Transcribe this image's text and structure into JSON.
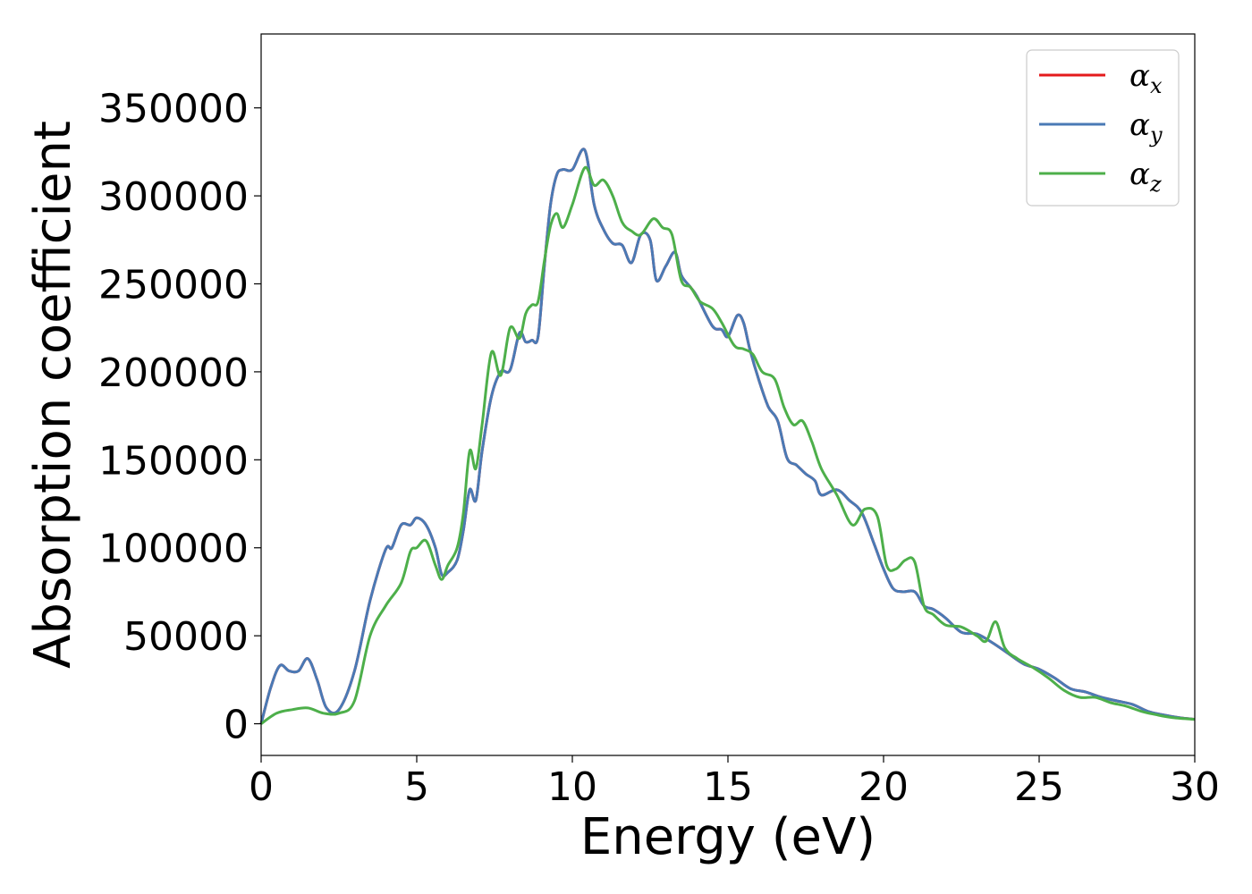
{
  "chart_data": {
    "type": "line",
    "title": "",
    "xlabel": "Energy (eV)",
    "ylabel": "Absorption coefficient",
    "xlim": [
      0,
      30
    ],
    "ylim": [
      -18000,
      392000
    ],
    "xticks": [
      0,
      5,
      10,
      15,
      20,
      25,
      30
    ],
    "yticks": [
      0,
      50000,
      100000,
      150000,
      200000,
      250000,
      300000,
      350000
    ],
    "grid": false,
    "legend_position": "top-right",
    "series": [
      {
        "name": "α",
        "sub": "x",
        "color": "#e41a1c",
        "x": [
          0,
          0.3,
          0.6,
          0.9,
          1.2,
          1.5,
          1.8,
          2.1,
          2.5,
          3.0,
          3.5,
          4.0,
          4.2,
          4.5,
          4.8,
          5.0,
          5.3,
          5.6,
          5.8,
          6.0,
          6.3,
          6.5,
          6.7,
          6.9,
          7.1,
          7.4,
          7.7,
          8.0,
          8.3,
          8.5,
          8.7,
          8.9,
          9.1,
          9.3,
          9.5,
          9.7,
          10.0,
          10.4,
          10.7,
          11.0,
          11.3,
          11.6,
          11.9,
          12.2,
          12.5,
          12.7,
          13.0,
          13.3,
          13.5,
          13.8,
          14.0,
          14.5,
          14.8,
          15.0,
          15.3,
          15.5,
          15.7,
          16.0,
          16.3,
          16.6,
          16.9,
          17.2,
          17.5,
          17.8,
          18.0,
          18.5,
          18.9,
          19.3,
          19.7,
          20.0,
          20.3,
          20.6,
          21.0,
          21.3,
          21.6,
          22.0,
          22.5,
          23.0,
          23.5,
          24.0,
          24.5,
          25.0,
          25.5,
          26.0,
          26.5,
          27.0,
          27.5,
          28.0,
          28.5,
          29.0,
          29.5,
          30.0
        ],
        "y": [
          0,
          20000,
          33000,
          30000,
          30000,
          37000,
          25000,
          9000,
          8000,
          30000,
          70000,
          99000,
          100000,
          113000,
          113000,
          117000,
          113000,
          100000,
          85000,
          86000,
          93000,
          110000,
          133000,
          127000,
          155000,
          186000,
          200000,
          201000,
          222000,
          217000,
          218000,
          220000,
          260000,
          295000,
          312000,
          315000,
          315000,
          326000,
          295000,
          281000,
          273000,
          272000,
          262000,
          278000,
          275000,
          252000,
          260000,
          268000,
          255000,
          248000,
          243000,
          226000,
          224000,
          220000,
          232000,
          228000,
          213000,
          195000,
          180000,
          172000,
          151000,
          147000,
          142000,
          138000,
          130000,
          133000,
          127000,
          120000,
          102000,
          88000,
          77000,
          75000,
          75000,
          67000,
          65000,
          60000,
          52000,
          51000,
          46000,
          40000,
          34000,
          31000,
          26000,
          20000,
          18000,
          15000,
          13000,
          11000,
          7000,
          5000,
          3500,
          2500
        ]
      },
      {
        "name": "α",
        "sub": "y",
        "color": "#4a7ab5",
        "x": [
          0,
          0.3,
          0.6,
          0.9,
          1.2,
          1.5,
          1.8,
          2.1,
          2.5,
          3.0,
          3.5,
          4.0,
          4.2,
          4.5,
          4.8,
          5.0,
          5.3,
          5.6,
          5.8,
          6.0,
          6.3,
          6.5,
          6.7,
          6.9,
          7.1,
          7.4,
          7.7,
          8.0,
          8.3,
          8.5,
          8.7,
          8.9,
          9.1,
          9.3,
          9.5,
          9.7,
          10.0,
          10.4,
          10.7,
          11.0,
          11.3,
          11.6,
          11.9,
          12.2,
          12.5,
          12.7,
          13.0,
          13.3,
          13.5,
          13.8,
          14.0,
          14.5,
          14.8,
          15.0,
          15.3,
          15.5,
          15.7,
          16.0,
          16.3,
          16.6,
          16.9,
          17.2,
          17.5,
          17.8,
          18.0,
          18.5,
          18.9,
          19.3,
          19.7,
          20.0,
          20.3,
          20.6,
          21.0,
          21.3,
          21.6,
          22.0,
          22.5,
          23.0,
          23.5,
          24.0,
          24.5,
          25.0,
          25.5,
          26.0,
          26.5,
          27.0,
          27.5,
          28.0,
          28.5,
          29.0,
          29.5,
          30.0
        ],
        "y": [
          0,
          20000,
          33000,
          30000,
          30000,
          37000,
          25000,
          9000,
          8000,
          30000,
          70000,
          99000,
          100000,
          113000,
          113000,
          117000,
          113000,
          100000,
          85000,
          86000,
          93000,
          110000,
          133000,
          127000,
          155000,
          186000,
          200000,
          201000,
          222000,
          217000,
          218000,
          220000,
          260000,
          295000,
          312000,
          315000,
          315000,
          326000,
          295000,
          281000,
          273000,
          272000,
          262000,
          278000,
          275000,
          252000,
          260000,
          268000,
          255000,
          248000,
          243000,
          226000,
          224000,
          220000,
          232000,
          228000,
          213000,
          195000,
          180000,
          172000,
          151000,
          147000,
          142000,
          138000,
          130000,
          133000,
          127000,
          120000,
          102000,
          88000,
          77000,
          75000,
          75000,
          67000,
          65000,
          60000,
          52000,
          51000,
          46000,
          40000,
          34000,
          31000,
          26000,
          20000,
          18000,
          15000,
          13000,
          11000,
          7000,
          5000,
          3500,
          2500
        ]
      },
      {
        "name": "α",
        "sub": "z",
        "color": "#4daf4a",
        "x": [
          0,
          0.5,
          1.0,
          1.5,
          2.0,
          2.5,
          3.0,
          3.5,
          4.0,
          4.5,
          4.8,
          5.0,
          5.3,
          5.6,
          5.8,
          6.0,
          6.3,
          6.5,
          6.7,
          6.9,
          7.1,
          7.4,
          7.7,
          8.0,
          8.3,
          8.5,
          8.7,
          8.9,
          9.1,
          9.3,
          9.5,
          9.7,
          10.0,
          10.4,
          10.7,
          11.0,
          11.3,
          11.6,
          11.9,
          12.2,
          12.6,
          12.9,
          13.2,
          13.5,
          13.8,
          14.1,
          14.5,
          14.8,
          15.2,
          15.5,
          15.8,
          16.1,
          16.5,
          16.8,
          17.1,
          17.4,
          17.7,
          18.0,
          18.5,
          19.0,
          19.4,
          19.8,
          20.1,
          20.4,
          20.7,
          21.0,
          21.3,
          21.6,
          22.0,
          22.5,
          23.0,
          23.3,
          23.6,
          23.9,
          24.3,
          24.8,
          25.3,
          25.8,
          26.3,
          26.8,
          27.3,
          27.8,
          28.3,
          28.8,
          29.3,
          30.0
        ],
        "y": [
          0,
          6000,
          8000,
          9000,
          6000,
          6000,
          13000,
          50000,
          67000,
          80000,
          98000,
          100000,
          104000,
          90000,
          82000,
          90000,
          100000,
          120000,
          155000,
          145000,
          170000,
          211000,
          198000,
          225000,
          219000,
          233000,
          238000,
          240000,
          263000,
          283000,
          290000,
          282000,
          295000,
          316000,
          306000,
          309000,
          300000,
          285000,
          280000,
          278000,
          287000,
          282000,
          278000,
          252000,
          248000,
          240000,
          236000,
          228000,
          215000,
          213000,
          210000,
          200000,
          196000,
          180000,
          170000,
          172000,
          160000,
          145000,
          130000,
          113000,
          122000,
          118000,
          90000,
          88000,
          93000,
          92000,
          67000,
          62000,
          56000,
          55000,
          50000,
          47000,
          58000,
          43000,
          37000,
          32000,
          26000,
          19000,
          15000,
          15000,
          12000,
          10000,
          7000,
          5000,
          3500,
          2500
        ]
      }
    ]
  }
}
